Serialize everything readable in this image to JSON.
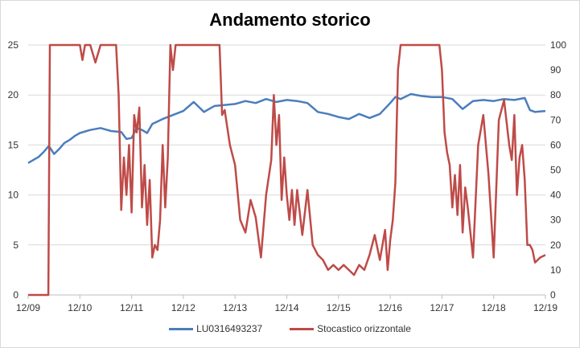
{
  "chart_data": {
    "type": "line",
    "title": "Andamento storico",
    "x_ticks": [
      "12/09",
      "12/10",
      "12/11",
      "12/12",
      "12/13",
      "12/14",
      "12/15",
      "12/16",
      "12/17",
      "12/18",
      "12/19"
    ],
    "y_left": {
      "range": [
        0,
        25
      ],
      "ticks": [
        "0",
        "5",
        "10",
        "15",
        "20",
        "25"
      ]
    },
    "y_right": {
      "range": [
        0,
        100
      ],
      "ticks": [
        "0",
        "10",
        "20",
        "30",
        "40",
        "50",
        "60",
        "70",
        "80",
        "90",
        "100"
      ]
    },
    "grid": "horizontal",
    "legend_position": "bottom",
    "series": [
      {
        "name": "LU0316493237",
        "axis": "left",
        "color": "#4a7ebb",
        "x": [
          0,
          0.1,
          0.2,
          0.3,
          0.4,
          0.5,
          0.6,
          0.7,
          0.8,
          0.9,
          1.0,
          1.2,
          1.4,
          1.6,
          1.8,
          1.9,
          2.0,
          2.1,
          2.2,
          2.3,
          2.4,
          2.6,
          2.8,
          3.0,
          3.2,
          3.3,
          3.4,
          3.5,
          3.6,
          3.8,
          4.0,
          4.2,
          4.4,
          4.6,
          4.8,
          5.0,
          5.2,
          5.4,
          5.6,
          5.8,
          6.0,
          6.2,
          6.4,
          6.6,
          6.8,
          7.0,
          7.1,
          7.2,
          7.4,
          7.6,
          7.8,
          8.0,
          8.2,
          8.4,
          8.6,
          8.8,
          9.0,
          9.2,
          9.4,
          9.6,
          9.7,
          9.8,
          10.0
        ],
        "y": [
          13.2,
          13.5,
          13.8,
          14.3,
          14.9,
          14.1,
          14.6,
          15.2,
          15.5,
          15.9,
          16.2,
          16.5,
          16.7,
          16.4,
          16.3,
          15.6,
          15.7,
          16.7,
          16.5,
          16.2,
          17.1,
          17.6,
          18.0,
          18.4,
          19.3,
          18.8,
          18.3,
          18.6,
          18.9,
          19.0,
          19.1,
          19.4,
          19.2,
          19.6,
          19.3,
          19.5,
          19.4,
          19.2,
          18.3,
          18.1,
          17.8,
          17.6,
          18.1,
          17.7,
          18.1,
          19.2,
          19.8,
          19.6,
          20.1,
          19.9,
          19.8,
          19.8,
          19.6,
          18.6,
          19.4,
          19.5,
          19.4,
          19.6,
          19.5,
          19.7,
          18.5,
          18.3,
          18.4
        ]
      },
      {
        "name": "Stocastico orizzontale",
        "axis": "right",
        "color": "#be4b48",
        "x": [
          0,
          0.38,
          0.39,
          0.42,
          0.6,
          1.0,
          1.05,
          1.1,
          1.2,
          1.3,
          1.4,
          1.6,
          1.7,
          1.75,
          1.8,
          1.85,
          1.9,
          1.95,
          2.0,
          2.05,
          2.1,
          2.15,
          2.2,
          2.25,
          2.3,
          2.35,
          2.4,
          2.45,
          2.5,
          2.55,
          2.6,
          2.65,
          2.7,
          2.75,
          2.8,
          2.85,
          2.9,
          2.95,
          3.0,
          3.05,
          3.1,
          3.15,
          3.2,
          3.3,
          3.5,
          3.7,
          3.75,
          3.8,
          3.9,
          4.0,
          4.1,
          4.2,
          4.3,
          4.4,
          4.5,
          4.6,
          4.7,
          4.75,
          4.8,
          4.85,
          4.9,
          4.95,
          5.0,
          5.05,
          5.1,
          5.15,
          5.2,
          5.3,
          5.4,
          5.5,
          5.6,
          5.7,
          5.8,
          5.9,
          6.0,
          6.1,
          6.2,
          6.3,
          6.4,
          6.5,
          6.6,
          6.7,
          6.8,
          6.9,
          6.95,
          7.0,
          7.05,
          7.1,
          7.15,
          7.2,
          7.3,
          7.5,
          7.8,
          7.9,
          7.95,
          8.0,
          8.05,
          8.1,
          8.15,
          8.2,
          8.25,
          8.3,
          8.35,
          8.4,
          8.45,
          8.5,
          8.6,
          8.7,
          8.8,
          8.9,
          9.0,
          9.1,
          9.2,
          9.3,
          9.35,
          9.4,
          9.45,
          9.5,
          9.55,
          9.6,
          9.65,
          9.7,
          9.75,
          9.8,
          9.9,
          10.0
        ],
        "y": [
          0,
          0,
          0,
          100,
          100,
          100,
          94,
          100,
          100,
          93,
          100,
          100,
          100,
          80,
          34,
          55,
          40,
          60,
          33,
          72,
          65,
          75,
          35,
          52,
          28,
          46,
          15,
          20,
          18,
          30,
          60,
          35,
          55,
          100,
          90,
          100,
          100,
          100,
          100,
          100,
          100,
          100,
          100,
          100,
          100,
          100,
          72,
          74,
          60,
          52,
          30,
          25,
          38,
          31,
          15,
          40,
          54,
          80,
          60,
          72,
          38,
          55,
          40,
          30,
          42,
          28,
          42,
          24,
          42,
          20,
          16,
          14,
          10,
          12,
          10,
          12,
          10,
          8,
          12,
          10,
          16,
          24,
          14,
          26,
          10,
          22,
          30,
          45,
          90,
          100,
          100,
          100,
          100,
          100,
          100,
          90,
          65,
          57,
          52,
          35,
          48,
          32,
          52,
          25,
          43,
          35,
          15,
          60,
          72,
          48,
          15,
          70,
          78,
          60,
          54,
          72,
          40,
          55,
          60,
          46,
          20,
          20,
          18,
          13,
          15,
          16
        ]
      }
    ]
  }
}
